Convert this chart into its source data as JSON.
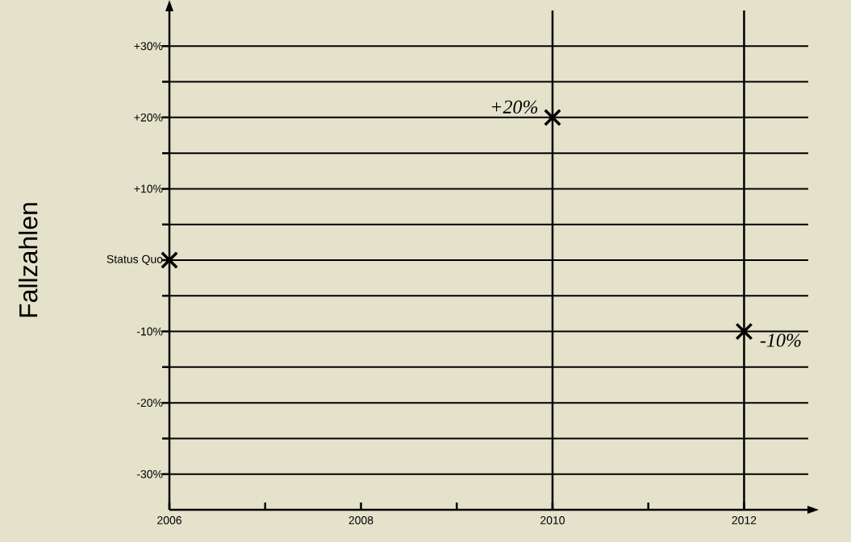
{
  "chart_data": {
    "type": "scatter",
    "ylabel": "Fallzahlen",
    "x": [
      2006,
      2010,
      2012
    ],
    "series": [
      {
        "color": "#000000",
        "values": [
          0,
          20,
          -10
        ],
        "value_labels": [
          null,
          "+20%",
          "-10%"
        ]
      }
    ],
    "marker": "cross",
    "xlim": [
      2006,
      2012.67
    ],
    "ylim": [
      -35,
      35
    ],
    "xticks": [
      2006,
      {
        "value": 2007,
        "label": null
      },
      2008,
      {
        "value": 2009,
        "label": null
      },
      2010,
      {
        "value": 2011,
        "label": null
      },
      2012
    ],
    "yticks": [
      {
        "value": -30,
        "label": "-30%"
      },
      {
        "value": -25,
        "label": null
      },
      {
        "value": -20,
        "label": "-20%"
      },
      {
        "value": -15,
        "label": null
      },
      {
        "value": -10,
        "label": "-10%"
      },
      {
        "value": -5,
        "label": null
      },
      {
        "value": 0,
        "label": "Status Quo"
      },
      {
        "value": 5,
        "label": null
      },
      {
        "value": 10,
        "label": "+10%"
      },
      {
        "value": 15,
        "label": null
      },
      {
        "value": 20,
        "label": "+20%"
      },
      {
        "value": 25,
        "label": null
      },
      {
        "value": 30,
        "label": "+30%"
      }
    ],
    "grid": "y",
    "ref_lines": [
      {
        "axis": "x",
        "value": 2010,
        "label": null
      },
      {
        "axis": "x",
        "value": 2012,
        "label": null
      }
    ]
  }
}
